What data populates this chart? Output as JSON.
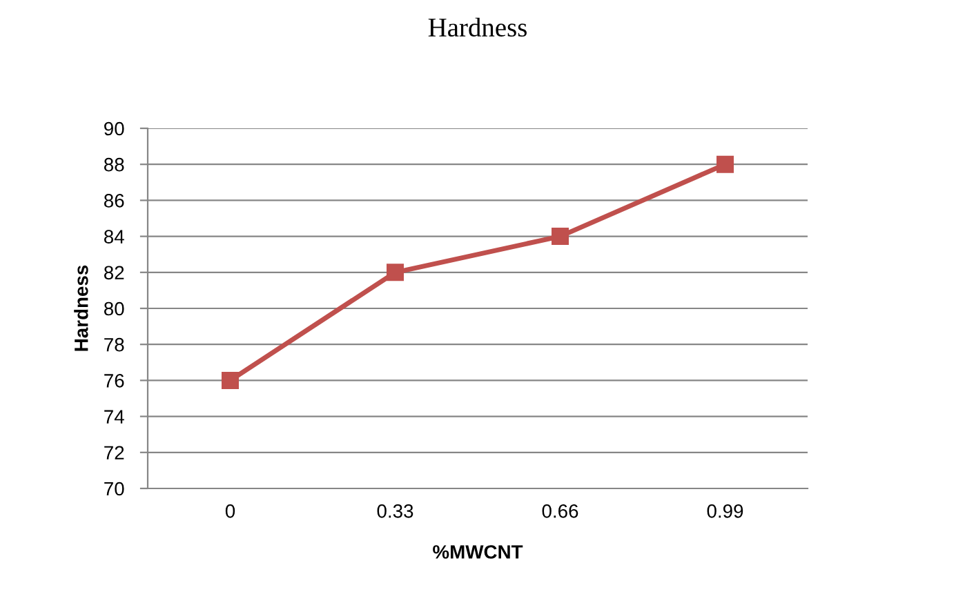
{
  "chart_data": {
    "type": "line",
    "title": "Hardness",
    "xlabel": "%MWCNT",
    "ylabel": "Hardness",
    "categories": [
      "0",
      "0.33",
      "0.66",
      "0.99"
    ],
    "series": [
      {
        "color": "#c0504d",
        "values": [
          76,
          82,
          84,
          88
        ]
      }
    ],
    "ylim": [
      70,
      90
    ],
    "yticks": [
      70,
      72,
      74,
      76,
      78,
      80,
      82,
      84,
      86,
      88,
      90
    ],
    "grid": "y",
    "marker": "square",
    "line_style": "solid"
  }
}
